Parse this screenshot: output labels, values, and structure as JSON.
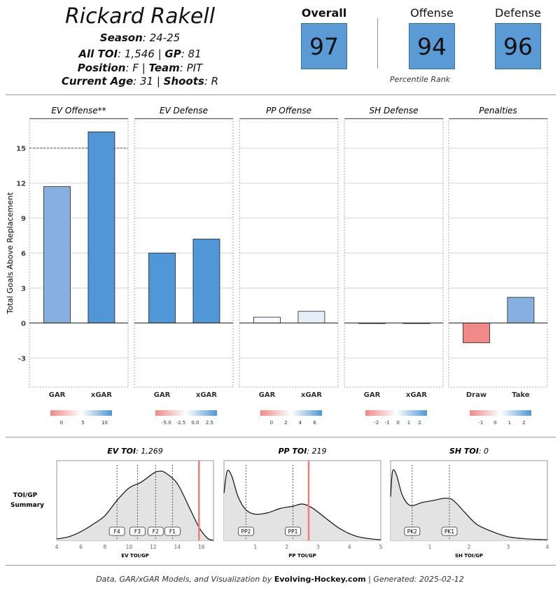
{
  "player": {
    "name": "Rickard Rakell",
    "season_label": "Season",
    "season": "24-25",
    "toi_label": "All TOI",
    "toi": "1,546",
    "gp_label": "GP",
    "gp": "81",
    "position_label": "Position",
    "position": "F",
    "team_label": "Team",
    "team": "PIT",
    "age_label": "Current Age",
    "age": "31",
    "shoots_label": "Shoots",
    "shoots": "R"
  },
  "ratings": {
    "overall_label": "Overall",
    "overall": "97",
    "offense_label": "Offense",
    "offense": "94",
    "defense_label": "Defense",
    "defense": "96",
    "caption": "Percentile Rank"
  },
  "colors": {
    "accent_blue": "#5b9bd5",
    "dark_blue": "#4f97d6",
    "light_blue": "#85b0e0",
    "pale_blue": "#e6eefa",
    "red": "#f08a86",
    "marker_red": "#ee7c78"
  },
  "chart_data": [
    {
      "type": "bar",
      "ylabel": "Total Goals Above Replacement",
      "ylim": [
        -5.5,
        17.5
      ],
      "yticks": [
        -3,
        0,
        3,
        6,
        9,
        12,
        15
      ],
      "ref_line": 15,
      "panels": [
        {
          "title": "EV Offense**",
          "categories": [
            "GAR",
            "xGAR"
          ],
          "values": [
            11.7,
            16.4
          ],
          "fills": [
            "#85b0e0",
            "#4f97d6"
          ],
          "legend_ticks": [
            "0",
            "5",
            "10"
          ]
        },
        {
          "title": "EV Defense",
          "categories": [
            "GAR",
            "xGAR"
          ],
          "values": [
            6.0,
            7.2
          ],
          "fills": [
            "#4f97d6",
            "#4f97d6"
          ],
          "legend_ticks": [
            "-5.0",
            "-2.5",
            "0.0",
            "2.5"
          ]
        },
        {
          "title": "PP Offense",
          "categories": [
            "GAR",
            "xGAR"
          ],
          "values": [
            0.5,
            1.0
          ],
          "fills": [
            "#f7f9fd",
            "#e6eefa"
          ],
          "legend_ticks": [
            "0",
            "2",
            "4",
            "6"
          ]
        },
        {
          "title": "SH Defense",
          "categories": [
            "GAR",
            "xGAR"
          ],
          "values": [
            0.0,
            0.0
          ],
          "fills": [
            "#ffffff",
            "#ffffff"
          ],
          "legend_ticks": [
            "-2",
            "-1",
            "0",
            "1",
            "2"
          ]
        },
        {
          "title": "Penalties",
          "categories": [
            "Draw",
            "Take"
          ],
          "values": [
            -1.7,
            2.2
          ],
          "fills": [
            "#f08a86",
            "#85b0e0"
          ],
          "legend_ticks": [
            "-1",
            "0",
            "1",
            "2"
          ]
        }
      ]
    },
    {
      "type": "area",
      "side_label_1": "TOI/GP",
      "side_label_2": "Summary",
      "panels": [
        {
          "title_label": "EV TOI",
          "title_value": "1,269",
          "xlabel": "EV TOI/GP",
          "xlim": [
            4,
            17
          ],
          "xticks": [
            "4",
            "6",
            "8",
            "10",
            "12",
            "14",
            "16"
          ],
          "density_x": [
            4,
            5,
            6,
            7,
            8,
            9,
            10,
            11,
            12,
            12.5,
            13,
            14,
            15,
            15.8,
            16.5,
            17
          ],
          "density_y": [
            0.02,
            0.05,
            0.12,
            0.22,
            0.34,
            0.55,
            0.72,
            0.8,
            0.92,
            0.95,
            0.93,
            0.78,
            0.45,
            0.18,
            0.03,
            0.0
          ],
          "markers": [
            {
              "label": "F4",
              "x": 9.0
            },
            {
              "label": "F3",
              "x": 10.7
            },
            {
              "label": "F2",
              "x": 12.2
            },
            {
              "label": "F1",
              "x": 13.6
            }
          ],
          "player_value": 15.8
        },
        {
          "title_label": "PP TOI",
          "title_value": "219",
          "xlabel": "PP TOI/GP",
          "xlim": [
            0,
            5
          ],
          "xticks": [
            "1",
            "2",
            "3",
            "4",
            "5"
          ],
          "density_x": [
            0,
            0.1,
            0.25,
            0.45,
            0.7,
            1.0,
            1.4,
            1.8,
            2.2,
            2.5,
            2.8,
            3.2,
            3.7,
            4.2,
            4.7,
            5.0
          ],
          "density_y": [
            0.65,
            0.95,
            0.88,
            0.6,
            0.42,
            0.36,
            0.38,
            0.44,
            0.47,
            0.5,
            0.45,
            0.32,
            0.16,
            0.06,
            0.02,
            0.01
          ],
          "markers": [
            {
              "label": "PP2",
              "x": 0.7
            },
            {
              "label": "PP1",
              "x": 2.2
            }
          ],
          "player_value": 2.7
        },
        {
          "title_label": "SH TOI",
          "title_value": "0",
          "xlabel": "SH TOI/GP",
          "xlim": [
            0,
            4
          ],
          "xticks": [
            "1",
            "2",
            "3",
            "4"
          ],
          "density_x": [
            0,
            0.05,
            0.15,
            0.3,
            0.5,
            0.8,
            1.1,
            1.4,
            1.6,
            1.9,
            2.2,
            2.6,
            3.0,
            3.5,
            4.0
          ],
          "density_y": [
            0.6,
            0.95,
            0.9,
            0.62,
            0.48,
            0.52,
            0.55,
            0.58,
            0.55,
            0.38,
            0.22,
            0.12,
            0.05,
            0.02,
            0.01
          ],
          "markers": [
            {
              "label": "PK2",
              "x": 0.55
            },
            {
              "label": "PK1",
              "x": 1.5
            }
          ],
          "player_value": null
        }
      ]
    }
  ],
  "footer": {
    "prefix": "Data, GAR/xGAR Models, and Visualization by ",
    "brand": "Evolving-Hockey.com",
    "suffix": " | Generated: 2025-02-12"
  }
}
